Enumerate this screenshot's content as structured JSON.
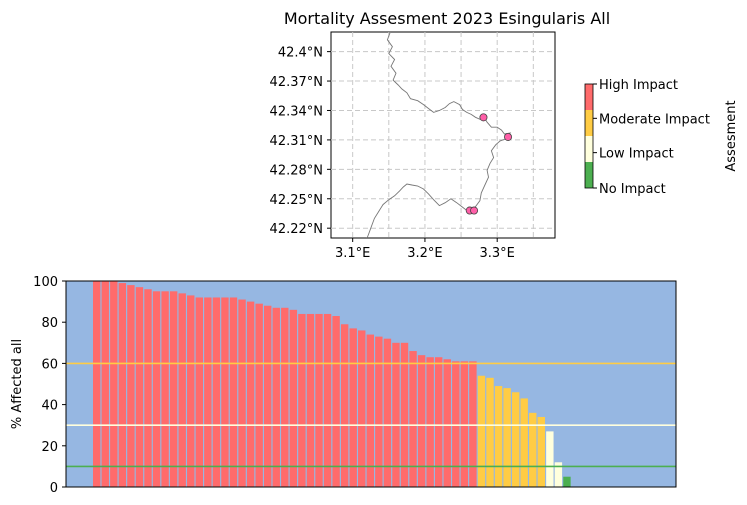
{
  "colors": {
    "high": "#ff6b6b",
    "moderate": "#ffcc44",
    "low": "#ffffdd",
    "none": "#4caf50",
    "bar_bg": "#96b7e2",
    "marker": "#ff5fa8",
    "coast": "#777777",
    "grid": "#c8c8c8"
  },
  "chart_data": [
    {
      "type": "map-scatter",
      "title": "Mortality Assesment 2023 Esingularis All",
      "xlim": [
        3.07,
        3.38
      ],
      "ylim": [
        42.21,
        42.42
      ],
      "x_ticks": [
        3.1,
        3.2,
        3.3
      ],
      "x_tick_labels": [
        "3.1°E",
        "3.2°E",
        "3.3°E"
      ],
      "y_ticks": [
        42.22,
        42.25,
        42.28,
        42.31,
        42.34,
        42.37,
        42.4
      ],
      "y_tick_labels": [
        "42.22°N",
        "42.25°N",
        "42.28°N",
        "42.31°N",
        "42.34°N",
        "42.37°N",
        "42.4°N"
      ],
      "grid": true,
      "grid_style": "dashed",
      "points": [
        {
          "lon": 3.281,
          "lat": 42.333,
          "category": "High Impact"
        },
        {
          "lon": 3.315,
          "lat": 42.313,
          "category": "High Impact"
        },
        {
          "lon": 3.262,
          "lat": 42.238,
          "category": "High Impact"
        },
        {
          "lon": 3.268,
          "lat": 42.238,
          "category": "High Impact"
        }
      ],
      "coastline": [
        [
          3.152,
          42.42
        ],
        [
          3.148,
          42.412
        ],
        [
          3.155,
          42.405
        ],
        [
          3.15,
          42.398
        ],
        [
          3.158,
          42.392
        ],
        [
          3.153,
          42.385
        ],
        [
          3.16,
          42.378
        ],
        [
          3.156,
          42.371
        ],
        [
          3.163,
          42.366
        ],
        [
          3.168,
          42.362
        ],
        [
          3.175,
          42.358
        ],
        [
          3.18,
          42.352
        ],
        [
          3.19,
          42.35
        ],
        [
          3.198,
          42.346
        ],
        [
          3.205,
          42.342
        ],
        [
          3.212,
          42.338
        ],
        [
          3.22,
          42.34
        ],
        [
          3.228,
          42.343
        ],
        [
          3.234,
          42.347
        ],
        [
          3.24,
          42.349
        ],
        [
          3.248,
          42.346
        ],
        [
          3.252,
          42.341
        ],
        [
          3.258,
          42.338
        ],
        [
          3.264,
          42.336
        ],
        [
          3.27,
          42.333
        ],
        [
          3.276,
          42.331
        ],
        [
          3.282,
          42.333
        ],
        [
          3.286,
          42.328
        ],
        [
          3.292,
          42.323
        ],
        [
          3.3,
          42.323
        ],
        [
          3.306,
          42.32
        ],
        [
          3.31,
          42.316
        ],
        [
          3.318,
          42.317
        ],
        [
          3.312,
          42.311
        ],
        [
          3.304,
          42.309
        ],
        [
          3.298,
          42.305
        ],
        [
          3.292,
          42.299
        ],
        [
          3.295,
          42.292
        ],
        [
          3.29,
          42.286
        ],
        [
          3.286,
          42.279
        ],
        [
          3.288,
          42.272
        ],
        [
          3.283,
          42.264
        ],
        [
          3.278,
          42.256
        ],
        [
          3.276,
          42.248
        ],
        [
          3.27,
          42.242
        ],
        [
          3.266,
          42.237
        ],
        [
          3.258,
          42.238
        ],
        [
          3.251,
          42.242
        ],
        [
          3.244,
          42.246
        ],
        [
          3.236,
          42.25
        ],
        [
          3.228,
          42.246
        ],
        [
          3.22,
          42.243
        ],
        [
          3.212,
          42.249
        ],
        [
          3.205,
          42.255
        ],
        [
          3.198,
          42.26
        ],
        [
          3.19,
          42.263
        ],
        [
          3.182,
          42.264
        ],
        [
          3.175,
          42.265
        ],
        [
          3.17,
          42.262
        ],
        [
          3.165,
          42.258
        ],
        [
          3.158,
          42.253
        ],
        [
          3.15,
          42.249
        ],
        [
          3.142,
          42.244
        ],
        [
          3.136,
          42.237
        ],
        [
          3.13,
          42.23
        ],
        [
          3.126,
          42.222
        ],
        [
          3.122,
          42.214
        ],
        [
          3.12,
          42.21
        ]
      ],
      "colorbar": {
        "label": "Assesment",
        "categories": [
          "No Impact",
          "Low Impact",
          "Moderate Impact",
          "High Impact"
        ]
      }
    },
    {
      "type": "bar",
      "ylabel": "% Affected all",
      "ylim": [
        0,
        100
      ],
      "y_ticks": [
        0,
        20,
        40,
        60,
        80,
        100
      ],
      "x_ticks_shown": false,
      "thresholds": [
        {
          "value": 60,
          "category": "Moderate Impact"
        },
        {
          "value": 30,
          "category": "Low Impact"
        },
        {
          "value": 10,
          "category": "No Impact"
        }
      ],
      "values": [
        100,
        100,
        100,
        99,
        98,
        97,
        96,
        95,
        95,
        95,
        94,
        93,
        92,
        92,
        92,
        92,
        92,
        91,
        90,
        89,
        88,
        87,
        87,
        86,
        84,
        84,
        84,
        84,
        83,
        79,
        77,
        76,
        74,
        73,
        72,
        70,
        70,
        66,
        64,
        63,
        63,
        62,
        61,
        61,
        61,
        54,
        53,
        49,
        48,
        46,
        43,
        36,
        34,
        27,
        12,
        5
      ],
      "categories_by_bar": [
        "High Impact",
        "High Impact",
        "High Impact",
        "High Impact",
        "High Impact",
        "High Impact",
        "High Impact",
        "High Impact",
        "High Impact",
        "High Impact",
        "High Impact",
        "High Impact",
        "High Impact",
        "High Impact",
        "High Impact",
        "High Impact",
        "High Impact",
        "High Impact",
        "High Impact",
        "High Impact",
        "High Impact",
        "High Impact",
        "High Impact",
        "High Impact",
        "High Impact",
        "High Impact",
        "High Impact",
        "High Impact",
        "High Impact",
        "High Impact",
        "High Impact",
        "High Impact",
        "High Impact",
        "High Impact",
        "High Impact",
        "High Impact",
        "High Impact",
        "High Impact",
        "High Impact",
        "High Impact",
        "High Impact",
        "High Impact",
        "High Impact",
        "High Impact",
        "High Impact",
        "Moderate Impact",
        "Moderate Impact",
        "Moderate Impact",
        "Moderate Impact",
        "Moderate Impact",
        "Moderate Impact",
        "Moderate Impact",
        "Moderate Impact",
        "Low Impact",
        "Low Impact",
        "No Impact"
      ]
    }
  ]
}
